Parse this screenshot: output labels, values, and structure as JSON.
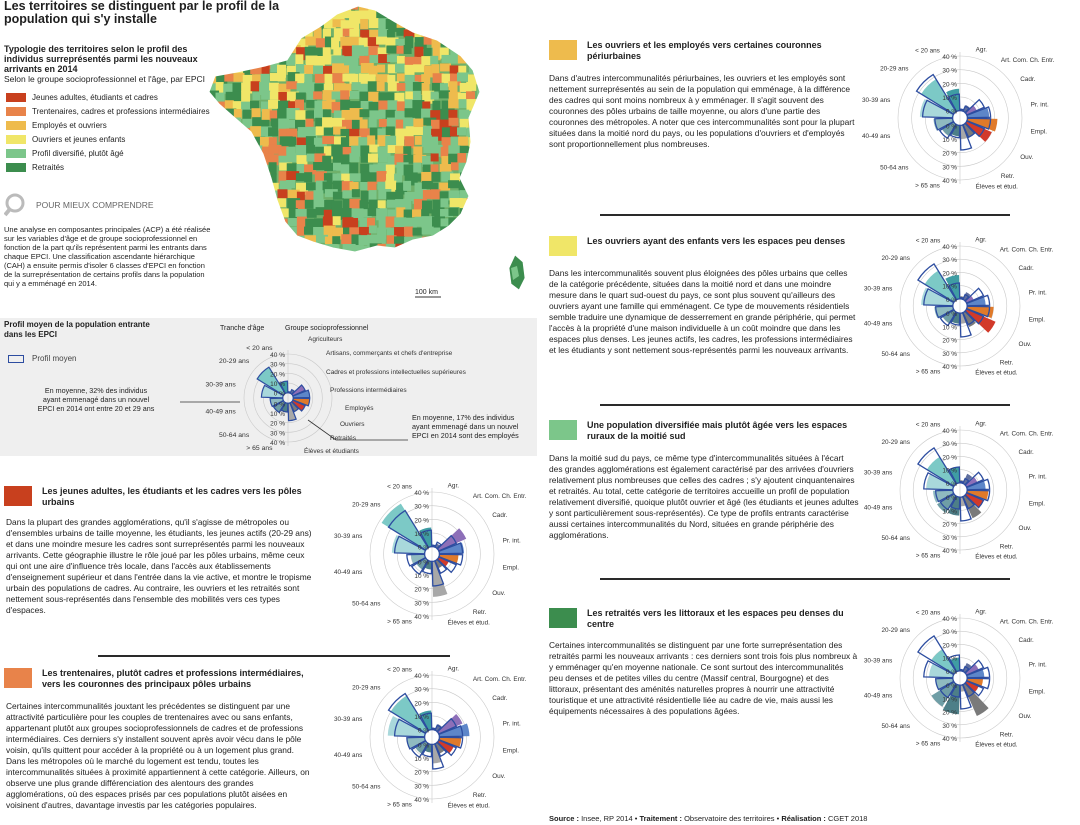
{
  "header": {
    "title": "Les territoires se distinguent par le profil de la population qui s'y installe"
  },
  "map": {
    "subtitle_bold": "Typologie des territoires selon le profil des individus surreprésentés parmi les nouveaux arrivants en 2014",
    "subtitle": "Selon le groupe socioprofessionnel et l'âge, par EPCI",
    "scale_label": "100 km",
    "legend": [
      {
        "label": "Jeunes adultes, étudiants et cadres",
        "color": "#c8401e"
      },
      {
        "label": "Trentenaires, cadres et professions intermédiaires",
        "color": "#e8834a"
      },
      {
        "label": "Employés et ouvriers",
        "color": "#eebb4d"
      },
      {
        "label": "Ouvriers et jeunes enfants",
        "color": "#f0e668"
      },
      {
        "label": "Profil diversifié, plutôt âgé",
        "color": "#7cc68a"
      },
      {
        "label": "Retraités",
        "color": "#3c8d4e"
      }
    ]
  },
  "pmc": {
    "title": "POUR MIEUX COMPRENDRE",
    "text": "Une analyse en composantes principales (ACP) a été réalisée sur les variables d'âge et de groupe socioprofessionnel en fonction de la part qu'ils représentent parmi les entrants dans chaque EPCI. Une classification ascendante hiérarchique (CAH) a ensuite permis d'isoler 6 classes d'EPCI en fonction de la surreprésentation de certains profils dans la population qui y a emménagé en 2014."
  },
  "profile": {
    "title": "Profil moyen de la population entrante dans les EPCI",
    "legend": "Profil moyen",
    "col_age": "Tranche d'âge",
    "col_csp": "Groupe socioprofessionnel",
    "ages": [
      "< 20 ans",
      "20-29 ans",
      "30-39 ans",
      "40-49 ans",
      "50-64 ans",
      "> 65 ans"
    ],
    "csp_long": [
      "Agriculteurs",
      "Artisans, commerçants et chefs d'entreprise",
      "Cadres et professions intellectuelles supérieures",
      "Professions intermédiaires",
      "Employés",
      "Ouvriers",
      "Retraités",
      "Élèves et étudiants"
    ],
    "csp_short": [
      "Agr.",
      "Art. Com. Ch. Entr.",
      "Cadr.",
      "Pr. int.",
      "Empl.",
      "Ouv.",
      "Retr.",
      "Élèves et étud."
    ],
    "scale": [
      "40 %",
      "30 %",
      "20 %",
      "10 %",
      "0 %"
    ],
    "scale_down": [
      "0 %",
      "10 %",
      "20 %",
      "30 %",
      "40 %"
    ],
    "note_left": "En moyenne, 32% des individus ayant emmenagé dans un nouvel EPCI en 2014 ont entre 20 et 29 ans",
    "note_right": "En moyenne, 17% des individus ayant emmenagé dans un nouvel EPCI en 2014 sont des employés",
    "average": {
      "age": [
        12,
        32,
        22,
        13,
        12,
        9
      ],
      "csp": [
        1,
        4,
        14,
        17,
        17,
        14,
        10,
        18
      ]
    }
  },
  "sections": [
    {
      "title": "Les jeunes adultes, les étudiants et les cadres vers les pôles urbains",
      "color": "#c8401e",
      "age": [
        14,
        38,
        24,
        10,
        8,
        6
      ],
      "csp": [
        0.5,
        3,
        22,
        18,
        14,
        8,
        6,
        26
      ],
      "text": "Dans la plupart des grandes agglomérations, qu'il s'agisse de métropoles ou d'ensembles urbains de taille moyenne, les étudiants, les jeunes actifs (20-29 ans) et dans une moindre mesure les cadres sont surreprésentés parmi les nouveaux arrivants. Cette géographie illustre le rôle joué par les pôles urbains, même ceux qui ont une aire d'influence très locale, dans l'accès aux établissements d'enseignement supérieur et dans l'entrée dans la vie active, et montre le tropisme urbain des populations de cadres. Au contraire, les ouvriers et les retraités sont nettement sous-représentés dans l'ensemble des mobilités vers ces types d'espaces."
    },
    {
      "title": "Les trentenaires, plutôt cadres et professions intermédiaires, vers les couronnes des principaux pôles urbains",
      "color": "#e8834a",
      "age": [
        14,
        30,
        27,
        13,
        9,
        6
      ],
      "csp": [
        1,
        5,
        19,
        22,
        16,
        12,
        8,
        14
      ],
      "text": "Certaines intercommunalités jouxtant les précédentes se distinguent par une attractivité particulière pour les couples de trentenaires avec ou sans enfants, appartenant plutôt aux groupes socioprofessionnels de cadres et de professions intermédiaires. Ces derniers s'y installent souvent après avoir vécu dans le pôle voisin, qu'ils quittent pour accéder à la propriété ou à un logement plus grand. Dans les métropoles où le marché du logement est tendu, toutes les intercommunalités situées à proximité appartiennent à cette catégorie. Ailleurs, on observe une plus grande différenciation des alentours des grandes agglomérations, où des espaces prisés par ces populations plutôt aisées en voisinent d'autres, davantage investis par les catégories populaires."
    },
    {
      "title": "Les ouvriers et les employés vers certaines couronnes périurbaines",
      "color": "#eebb4d",
      "age": [
        16,
        28,
        24,
        14,
        10,
        8
      ],
      "csp": [
        1,
        5,
        8,
        16,
        22,
        20,
        10,
        10
      ],
      "text": "Dans d'autres intercommunalités périurbaines, les ouvriers et les employés sont nettement surreprésentés au sein de la population qui emménage, à la différence des cadres qui sont moins nombreux à y emménager. Il s'agit souvent des couronnes des pôles urbains de taille moyenne, ou alors d'une partie des couronnes des métropoles. A noter que ces intercommunalités sont pour la plupart situées dans la moitié nord du pays, ou les populations d'ouvriers et d'employés sont proportionnellement plus nombreuses."
    },
    {
      "title": "Les ouvriers ayant des enfants vers les espaces peu denses",
      "color": "#f0e668",
      "age": [
        18,
        26,
        24,
        14,
        10,
        8
      ],
      "csp": [
        2,
        6,
        6,
        14,
        20,
        24,
        12,
        8
      ],
      "text": "Dans les intercommunalités souvent plus éloignées des pôles urbains que celles de la catégorie précédente, situées dans la moitié nord et dans une moindre mesure dans le quart sud-ouest du pays, ce sont plus souvent qu'ailleurs des ouvriers ayant une famille qui emménagent. Ce type de mouvements résidentiels semble traduire une dynamique de desserrement en grande périphérie, qui permet l'accès à la propriété d'une maison individuelle à un coût moindre que dans les espaces plus denses. Les jeunes actifs, les cadres, les professions intermédiaires et les étudiants y sont nettement sous-représentés parmi les nouveaux arrivants."
    },
    {
      "title": "Une population diversifiée mais plutôt âgée vers les espaces ruraux de la moitié sud",
      "color": "#7cc68a",
      "age": [
        12,
        24,
        20,
        15,
        15,
        14
      ],
      "csp": [
        2,
        8,
        9,
        14,
        16,
        14,
        18,
        7
      ],
      "text": "Dans la moitié sud du pays, ce même type d'intercommunalités situées à l'écart des grandes agglomérations est également caractérisé par des arrivées d'ouvriers relativement plus nombreuses que celles des cadres ; s'y ajoutent cinquantenaires et retraités. Au total, cette catégorie de territoires accueille un profil de population relativement diversifié, quoique plutôt ouvrier et âgé (les étudiants et jeunes adultes y sont particulièrement sous-représentés). Ce type de profils entrants caractérise aussi certaines intercommunalités du Nord, situées en grande périphérie des agglomérations."
    },
    {
      "title": "Les retraités vers les littoraux et les espaces peu denses du centre",
      "color": "#3c8d4e",
      "age": [
        10,
        20,
        18,
        13,
        20,
        22
      ],
      "csp": [
        1,
        7,
        10,
        13,
        12,
        10,
        26,
        5
      ],
      "text": "Certaines intercommunalités se distinguent par une forte surreprésentation des retraités parmi les nouveaux arrivants : ces derniers sont trois fois plus nombreux à y emménager qu'en moyenne nationale. Ce sont surtout des intercommunalités peu denses et de petites villes du centre (Massif central, Bourgogne) et des littoraux, présentant des aménités naturelles propres à nourrir une attractivité touristique et une attractivité résidentielle liée au cadre de vie, mais aussi les équipements nécessaires à des populations âgées."
    }
  ],
  "source": {
    "label1": "Source :",
    "v1": " Insee, RP 2014 • ",
    "label2": "Traitement :",
    "v2": " Observatoire des territoires • ",
    "label3": "Réalisation :",
    "v3": " CGET 2018"
  }
}
